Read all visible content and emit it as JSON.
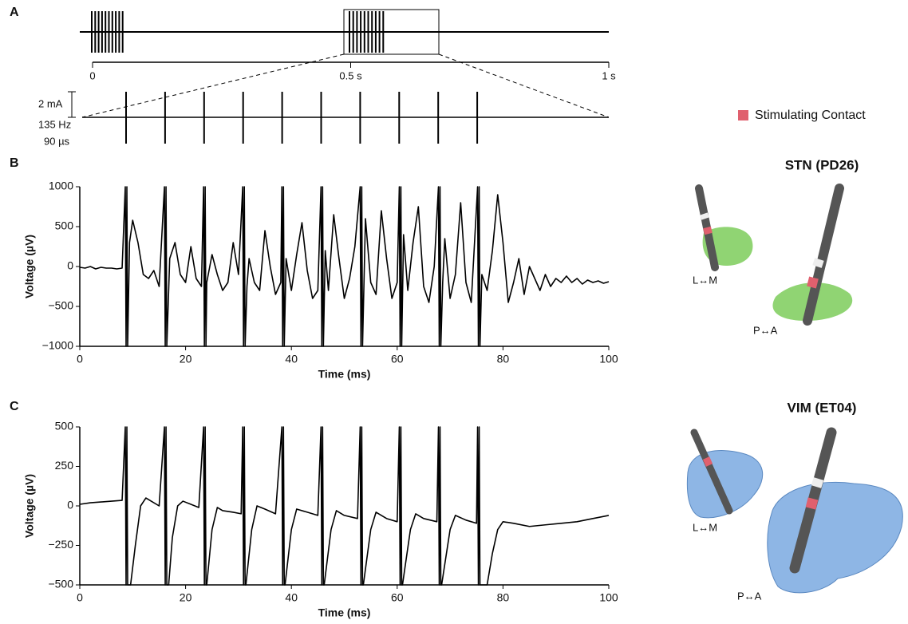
{
  "panel_labels": [
    "A",
    "B",
    "C"
  ],
  "panel_a": {
    "timeline_ticks": [
      {
        "value": 0,
        "label": "0"
      },
      {
        "value": 0.5,
        "label": "0.5 s"
      },
      {
        "value": 1,
        "label": "1 s"
      }
    ],
    "scale_label": "2 mA",
    "frequency": "135 Hz",
    "pulse_width": "90 µs"
  },
  "legend": {
    "label": "Stimulating Contact",
    "color": "#e0606e"
  },
  "anatomy": [
    {
      "title": "STN (PD26)",
      "views": [
        "L↔M",
        "P↔A"
      ]
    },
    {
      "title": "VIM (ET04)",
      "views": [
        "L↔M",
        "P↔A"
      ]
    }
  ],
  "chart_data": [
    {
      "type": "line",
      "xlabel": "Time (ms)",
      "ylabel": "Voltage (µV)",
      "color": "#000000",
      "xlim": [
        0,
        100
      ],
      "ylim": [
        -1000,
        1000
      ],
      "xticks": [
        0,
        20,
        40,
        60,
        80,
        100
      ],
      "yticks": [
        {
          "value": -1000,
          "label": "−1000"
        },
        {
          "value": -500,
          "label": "−500"
        },
        0,
        500,
        1000
      ],
      "x": [
        0,
        1,
        2,
        3,
        4,
        5,
        6,
        7,
        8,
        8.6,
        8.75,
        8.9,
        9.05,
        9.4,
        10,
        11,
        12,
        13,
        14,
        15,
        16,
        16.15,
        16.3,
        16.45,
        17,
        18,
        19,
        20,
        21,
        22,
        23,
        23.4,
        23.55,
        23.7,
        23.85,
        24,
        25,
        26,
        27,
        28,
        29,
        30,
        30.8,
        30.95,
        31.1,
        31.25,
        31.6,
        32,
        33,
        34,
        35,
        36,
        37,
        38,
        38.2,
        38.35,
        38.5,
        38.65,
        39,
        40,
        41,
        42,
        43,
        44,
        45,
        45.6,
        45.75,
        45.9,
        46.05,
        46.4,
        47,
        48,
        49,
        50,
        51,
        52,
        53,
        53.15,
        53.3,
        53.45,
        54,
        55,
        56,
        57,
        58,
        59,
        60,
        60.4,
        60.55,
        60.7,
        60.85,
        61.2,
        62,
        63,
        64,
        65,
        66,
        67,
        67.8,
        67.95,
        68.1,
        68.25,
        68.6,
        69,
        70,
        71,
        72,
        73,
        74,
        75.2,
        75.35,
        75.5,
        75.65,
        76,
        77,
        78,
        79,
        80,
        81,
        82,
        83,
        84,
        85,
        86,
        87,
        88,
        89,
        90,
        91,
        92,
        93,
        94,
        95,
        96,
        97,
        98,
        99,
        100
      ],
      "values": [
        -10,
        -20,
        0,
        -30,
        -10,
        -20,
        -20,
        -30,
        -20,
        1000,
        -1000,
        1000,
        -1000,
        300,
        580,
        300,
        -100,
        -150,
        -50,
        -250,
        1000,
        -1000,
        1000,
        -1000,
        100,
        300,
        -100,
        -200,
        250,
        -150,
        -250,
        1000,
        -1000,
        1000,
        -1000,
        -200,
        150,
        -100,
        -300,
        -200,
        300,
        -100,
        1000,
        -1000,
        1000,
        -1000,
        -250,
        100,
        -200,
        -300,
        450,
        0,
        -350,
        -200,
        1000,
        -1000,
        1000,
        -1000,
        100,
        -300,
        150,
        550,
        -50,
        -400,
        -300,
        1000,
        -1000,
        1000,
        -1000,
        200,
        -300,
        650,
        100,
        -400,
        -150,
        250,
        1000,
        -1000,
        1000,
        -1000,
        600,
        -200,
        -350,
        700,
        100,
        -400,
        -200,
        1000,
        -1000,
        1000,
        -1000,
        400,
        -300,
        300,
        750,
        -250,
        -450,
        0,
        1000,
        -1000,
        1000,
        -1000,
        -200,
        350,
        -400,
        -100,
        800,
        -200,
        -450,
        1000,
        -1000,
        1000,
        -1000,
        -100,
        -300,
        200,
        900,
        300,
        -450,
        -200,
        100,
        -350,
        0,
        -150,
        -300,
        -100,
        -250,
        -150,
        -200,
        -120,
        -200,
        -150,
        -220,
        -170,
        -200,
        -180,
        -210,
        -190
      ]
    },
    {
      "type": "line",
      "xlabel": "Time (ms)",
      "ylabel": "Voltage (µV)",
      "color": "#000000",
      "xlim": [
        0,
        100
      ],
      "ylim": [
        -500,
        500
      ],
      "xticks": [
        0,
        20,
        40,
        60,
        80,
        100
      ],
      "yticks": [
        {
          "value": -500,
          "label": "−500"
        },
        {
          "value": -250,
          "label": "−250"
        },
        0,
        250,
        500
      ],
      "x": [
        0,
        2,
        4,
        6,
        8,
        8.6,
        8.75,
        8.9,
        9.05,
        9.6,
        10.5,
        11.5,
        12.5,
        13.5,
        15,
        16,
        16.15,
        16.3,
        16.45,
        16.8,
        17.5,
        18.5,
        19.5,
        21,
        22.5,
        23.4,
        23.55,
        23.7,
        23.85,
        24,
        25,
        26,
        27,
        29,
        30.5,
        30.8,
        30.95,
        31.1,
        31.25,
        31.4,
        32.5,
        33.5,
        35,
        37,
        38.2,
        38.35,
        38.5,
        38.65,
        38.8,
        40,
        41,
        43,
        45,
        45.6,
        45.75,
        45.9,
        46.05,
        46.2,
        47.5,
        48.5,
        50,
        52.5,
        53,
        53.15,
        53.3,
        53.45,
        53.6,
        55,
        56,
        58,
        60,
        60.4,
        60.55,
        60.7,
        60.85,
        61,
        62.5,
        63.5,
        65,
        67.5,
        67.8,
        67.95,
        68.1,
        68.25,
        68.4,
        70,
        71,
        73,
        75,
        75.2,
        75.35,
        75.5,
        75.65,
        75.8,
        77,
        78,
        79,
        80,
        82,
        85,
        88,
        91,
        94,
        97,
        100
      ],
      "values": [
        10,
        20,
        25,
        30,
        35,
        500,
        -500,
        500,
        -500,
        -500,
        -250,
        0,
        50,
        30,
        0,
        500,
        -500,
        500,
        -500,
        -500,
        -200,
        0,
        30,
        10,
        -10,
        500,
        -500,
        500,
        -500,
        -500,
        -150,
        -10,
        -30,
        -40,
        -50,
        500,
        -500,
        500,
        -500,
        -500,
        -150,
        0,
        -20,
        -50,
        500,
        -500,
        500,
        -500,
        -500,
        -150,
        -20,
        -40,
        -60,
        500,
        -500,
        500,
        -500,
        -500,
        -150,
        -30,
        -60,
        -80,
        500,
        -500,
        500,
        -500,
        -500,
        -150,
        -40,
        -80,
        -100,
        500,
        -500,
        500,
        -500,
        -500,
        -150,
        -50,
        -80,
        -100,
        500,
        -500,
        500,
        -500,
        -500,
        -150,
        -60,
        -90,
        -110,
        500,
        -500,
        500,
        -500,
        -500,
        -500,
        -300,
        -150,
        -100,
        -110,
        -130,
        -120,
        -110,
        -100,
        -80,
        -60
      ]
    }
  ]
}
